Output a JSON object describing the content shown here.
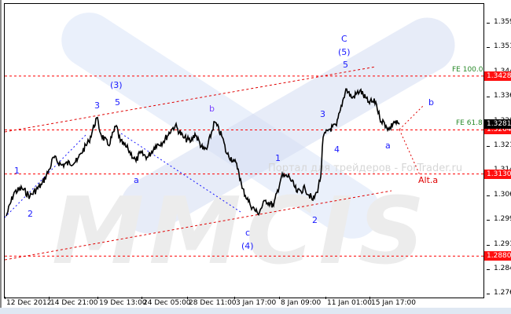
{
  "chart_data": {
    "type": "line",
    "title": "",
    "instrument_note": "",
    "y_axis": {
      "ticks": [
        "1.3590",
        "1.3515",
        "1.3440",
        "1.3365",
        "1.3290",
        "1.3215",
        "1.3140",
        "1.3065",
        "1.2990",
        "1.2915",
        "1.2840",
        "1.2765"
      ],
      "range": [
        1.275,
        1.3665
      ],
      "position": "right"
    },
    "x_axis": {
      "ticks": [
        "12 Dec 2012",
        "14 Dec 21:00",
        "19 Dec 13:00",
        "24 Dec 05:00",
        "28 Dec 11:00",
        "3 Jan 17:00",
        "8 Jan 09:00",
        "11 Jan 01:00",
        "15 Jan 17:00"
      ]
    },
    "series": [
      {
        "color": "#000000",
        "points": [
          [
            0,
            1.3002
          ],
          [
            2,
            1.3074
          ],
          [
            4,
            1.3086
          ],
          [
            6,
            1.3062
          ],
          [
            9,
            1.3098
          ],
          [
            11,
            1.3145
          ],
          [
            12,
            1.3181
          ],
          [
            14,
            1.3157
          ],
          [
            18,
            1.3169
          ],
          [
            19,
            1.3193
          ],
          [
            21,
            1.3229
          ],
          [
            23,
            1.3301
          ],
          [
            24,
            1.3253
          ],
          [
            26,
            1.3217
          ],
          [
            28,
            1.3277
          ],
          [
            29,
            1.3229
          ],
          [
            31,
            1.3205
          ],
          [
            33,
            1.3169
          ],
          [
            34,
            1.3193
          ],
          [
            36,
            1.3181
          ],
          [
            38,
            1.3217
          ],
          [
            40,
            1.3229
          ],
          [
            42,
            1.3265
          ],
          [
            43,
            1.3277
          ],
          [
            45,
            1.3241
          ],
          [
            47,
            1.3229
          ],
          [
            48,
            1.3253
          ],
          [
            50,
            1.3205
          ],
          [
            51,
            1.3205
          ],
          [
            53,
            1.3289
          ],
          [
            55,
            1.3241
          ],
          [
            56,
            1.3193
          ],
          [
            58,
            1.3169
          ],
          [
            59,
            1.3145
          ],
          [
            60,
            1.3086
          ],
          [
            62,
            1.3038
          ],
          [
            64,
            1.3009
          ],
          [
            66,
            1.305
          ],
          [
            68,
            1.3033
          ],
          [
            70,
            1.3122
          ],
          [
            72,
            1.3122
          ],
          [
            74,
            1.3074
          ],
          [
            76,
            1.3086
          ],
          [
            78,
            1.305
          ],
          [
            79,
            1.3074
          ],
          [
            80,
            1.3122
          ],
          [
            80.6,
            1.3241
          ],
          [
            82,
            1.3265
          ],
          [
            84,
            1.3277
          ],
          [
            85,
            1.3325
          ],
          [
            86.4,
            1.3389
          ],
          [
            88,
            1.3361
          ],
          [
            90,
            1.3384
          ],
          [
            92,
            1.3349
          ],
          [
            94,
            1.3349
          ],
          [
            95,
            1.3301
          ],
          [
            96.6,
            1.3277
          ],
          [
            97.4,
            1.3265
          ],
          [
            98.6,
            1.3289
          ],
          [
            100,
            1.3281
          ]
        ]
      }
    ],
    "levels": [
      {
        "price": 1.3428,
        "label": "1.3428",
        "fe": "FE 100.0"
      },
      {
        "price": 1.3264,
        "label": "1.3264",
        "fe": "FE 61.8"
      },
      {
        "price": 1.313,
        "label": "1.3130",
        "fe": ""
      },
      {
        "price": 1.288,
        "label": "1.2880",
        "fe": ""
      }
    ],
    "current_price": "1.3281",
    "wave_labels": [
      "1",
      "2",
      "3",
      "5",
      "(3)",
      "a",
      "b",
      "c",
      "(4)",
      "1",
      "2",
      "3",
      "4",
      "5",
      "(5)",
      "C",
      "a",
      "b",
      "Alt.a"
    ],
    "colors": {
      "price": "#000000",
      "levels": "#ff0000",
      "waves": "#1a1aff",
      "fe": "#2a8a2a"
    }
  },
  "watermark": {
    "logo": "MMCIS",
    "portal": "Портал для трейдеров - ForTrader.ru"
  }
}
